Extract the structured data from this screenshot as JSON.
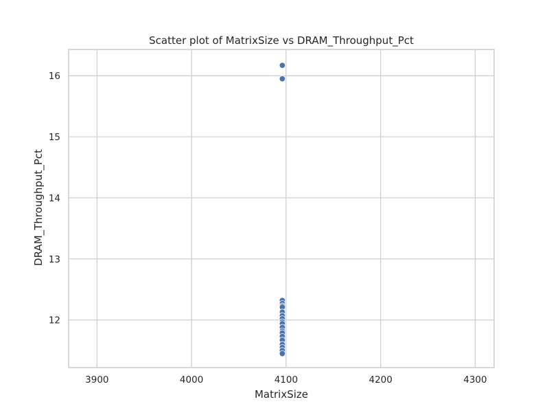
{
  "chart_data": {
    "type": "scatter",
    "title": "Scatter plot of MatrixSize vs DRAM_Throughput_Pct",
    "xlabel": "MatrixSize",
    "ylabel": "DRAM_Throughput_Pct",
    "xlim": [
      3870,
      4320
    ],
    "ylim": [
      11.22,
      16.43
    ],
    "xticks": [
      3900,
      4000,
      4100,
      4200,
      4300
    ],
    "yticks": [
      12,
      13,
      14,
      15,
      16
    ],
    "xtick_labels": [
      "3900",
      "4000",
      "4100",
      "4200",
      "4300"
    ],
    "ytick_labels": [
      "12",
      "13",
      "14",
      "15",
      "16"
    ],
    "grid": true,
    "point_color": "#4c72b0",
    "points": [
      {
        "x": 4096,
        "y": 16.17
      },
      {
        "x": 4096,
        "y": 15.95
      },
      {
        "x": 4096,
        "y": 12.32
      },
      {
        "x": 4096,
        "y": 12.27
      },
      {
        "x": 4096,
        "y": 12.23
      },
      {
        "x": 4096,
        "y": 12.21
      },
      {
        "x": 4096,
        "y": 12.13
      },
      {
        "x": 4096,
        "y": 12.07
      },
      {
        "x": 4096,
        "y": 12.02
      },
      {
        "x": 4096,
        "y": 11.97
      },
      {
        "x": 4096,
        "y": 11.94
      },
      {
        "x": 4096,
        "y": 11.88
      },
      {
        "x": 4096,
        "y": 11.82
      },
      {
        "x": 4096,
        "y": 11.79
      },
      {
        "x": 4096,
        "y": 11.73
      },
      {
        "x": 4096,
        "y": 11.67
      },
      {
        "x": 4096,
        "y": 11.6
      },
      {
        "x": 4096,
        "y": 11.55
      },
      {
        "x": 4096,
        "y": 11.5
      },
      {
        "x": 4096,
        "y": 11.45
      }
    ]
  }
}
